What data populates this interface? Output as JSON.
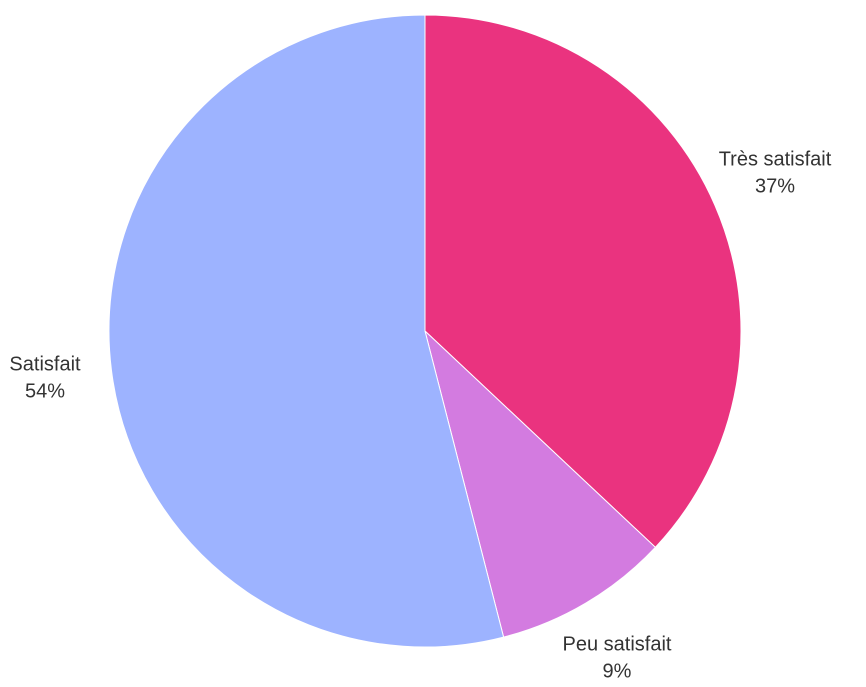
{
  "chart_data": {
    "type": "pie",
    "categories": [
      "Très satisfait",
      "Peu satisfait",
      "Satisfait"
    ],
    "values": [
      37,
      9,
      54
    ],
    "value_labels": [
      "37%",
      "9%",
      "54%"
    ],
    "colors": [
      "#ea337f",
      "#d37be0",
      "#9db3ff"
    ]
  }
}
